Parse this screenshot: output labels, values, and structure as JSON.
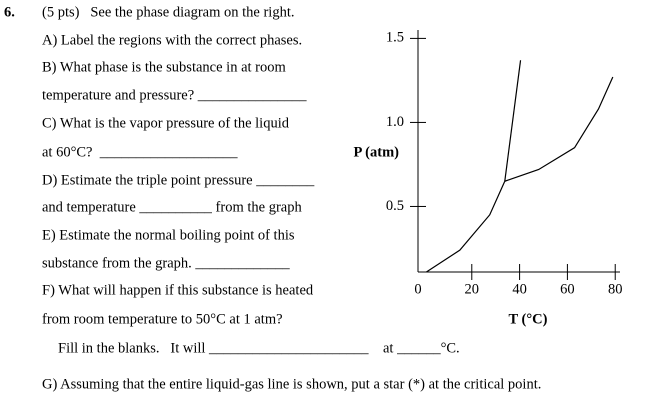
{
  "question_number": "6.",
  "lines": [
    "(5 pts)   See the phase diagram on the right.",
    "A) Label the regions with the correct phases.",
    "B) What phase is the substance in at room",
    "temperature and pressure? _______________",
    "C) What is the vapor pressure of the liquid",
    "at 60°C?  ___________________",
    "D) Estimate the triple point pressure ________",
    "and temperature __________ from the graph",
    "E) Estimate the normal boiling point of this",
    "substance from the graph. _____________",
    "F) What will happen if this substance is heated",
    "from room temperature to 50°C at 1 atm?",
    "Fill in the blanks.   It will ______________________",
    "G) Assuming that the entire liquid-gas line is shown, put a star (*) at the critical point."
  ],
  "blank_suffix": "at ______°C.",
  "chart_data": {
    "type": "line",
    "xlabel": "T (°C)",
    "ylabel": "P (atm)",
    "xlim": [
      -2.5,
      82
    ],
    "ylim": [
      0.11,
      1.55
    ],
    "xticks": [
      0,
      20,
      40,
      60,
      80
    ],
    "yticks": [
      0.5,
      {
        "value": 1,
        "label": "1.0"
      },
      1.5
    ],
    "series": [
      {
        "color": "#000000",
        "x": [
          1,
          15,
          27.5,
          33.8
        ],
        "values": [
          0.11,
          0.24,
          0.45,
          0.65
        ]
      },
      {
        "color": "#000000",
        "x": [
          33.8,
          40.4
        ],
        "values": [
          0.65,
          1.37
        ]
      },
      {
        "color": "#000000",
        "x": [
          33.8,
          48,
          63,
          73,
          79
        ],
        "values": [
          0.65,
          0.72,
          0.85,
          1.08,
          1.27
        ]
      }
    ]
  }
}
